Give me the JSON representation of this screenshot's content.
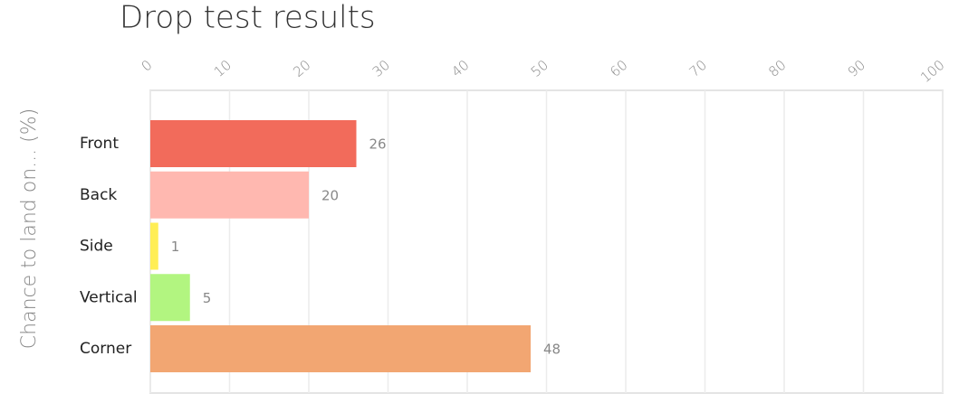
{
  "chart_data": {
    "type": "bar",
    "orientation": "horizontal",
    "title": "Drop test results",
    "y_label": "Chance to land on... (%)",
    "categories": [
      "Front",
      "Back",
      "Side",
      "Vertical",
      "Corner"
    ],
    "values": [
      26,
      20,
      1,
      5,
      48
    ],
    "colors": [
      "#f26b5b",
      "#ffb8b0",
      "#ffee55",
      "#b2f580",
      "#f2a672"
    ],
    "xlim": [
      0,
      100
    ],
    "xticks": [
      0,
      10,
      20,
      30,
      40,
      50,
      60,
      70,
      80,
      90,
      100
    ],
    "grid": true
  }
}
